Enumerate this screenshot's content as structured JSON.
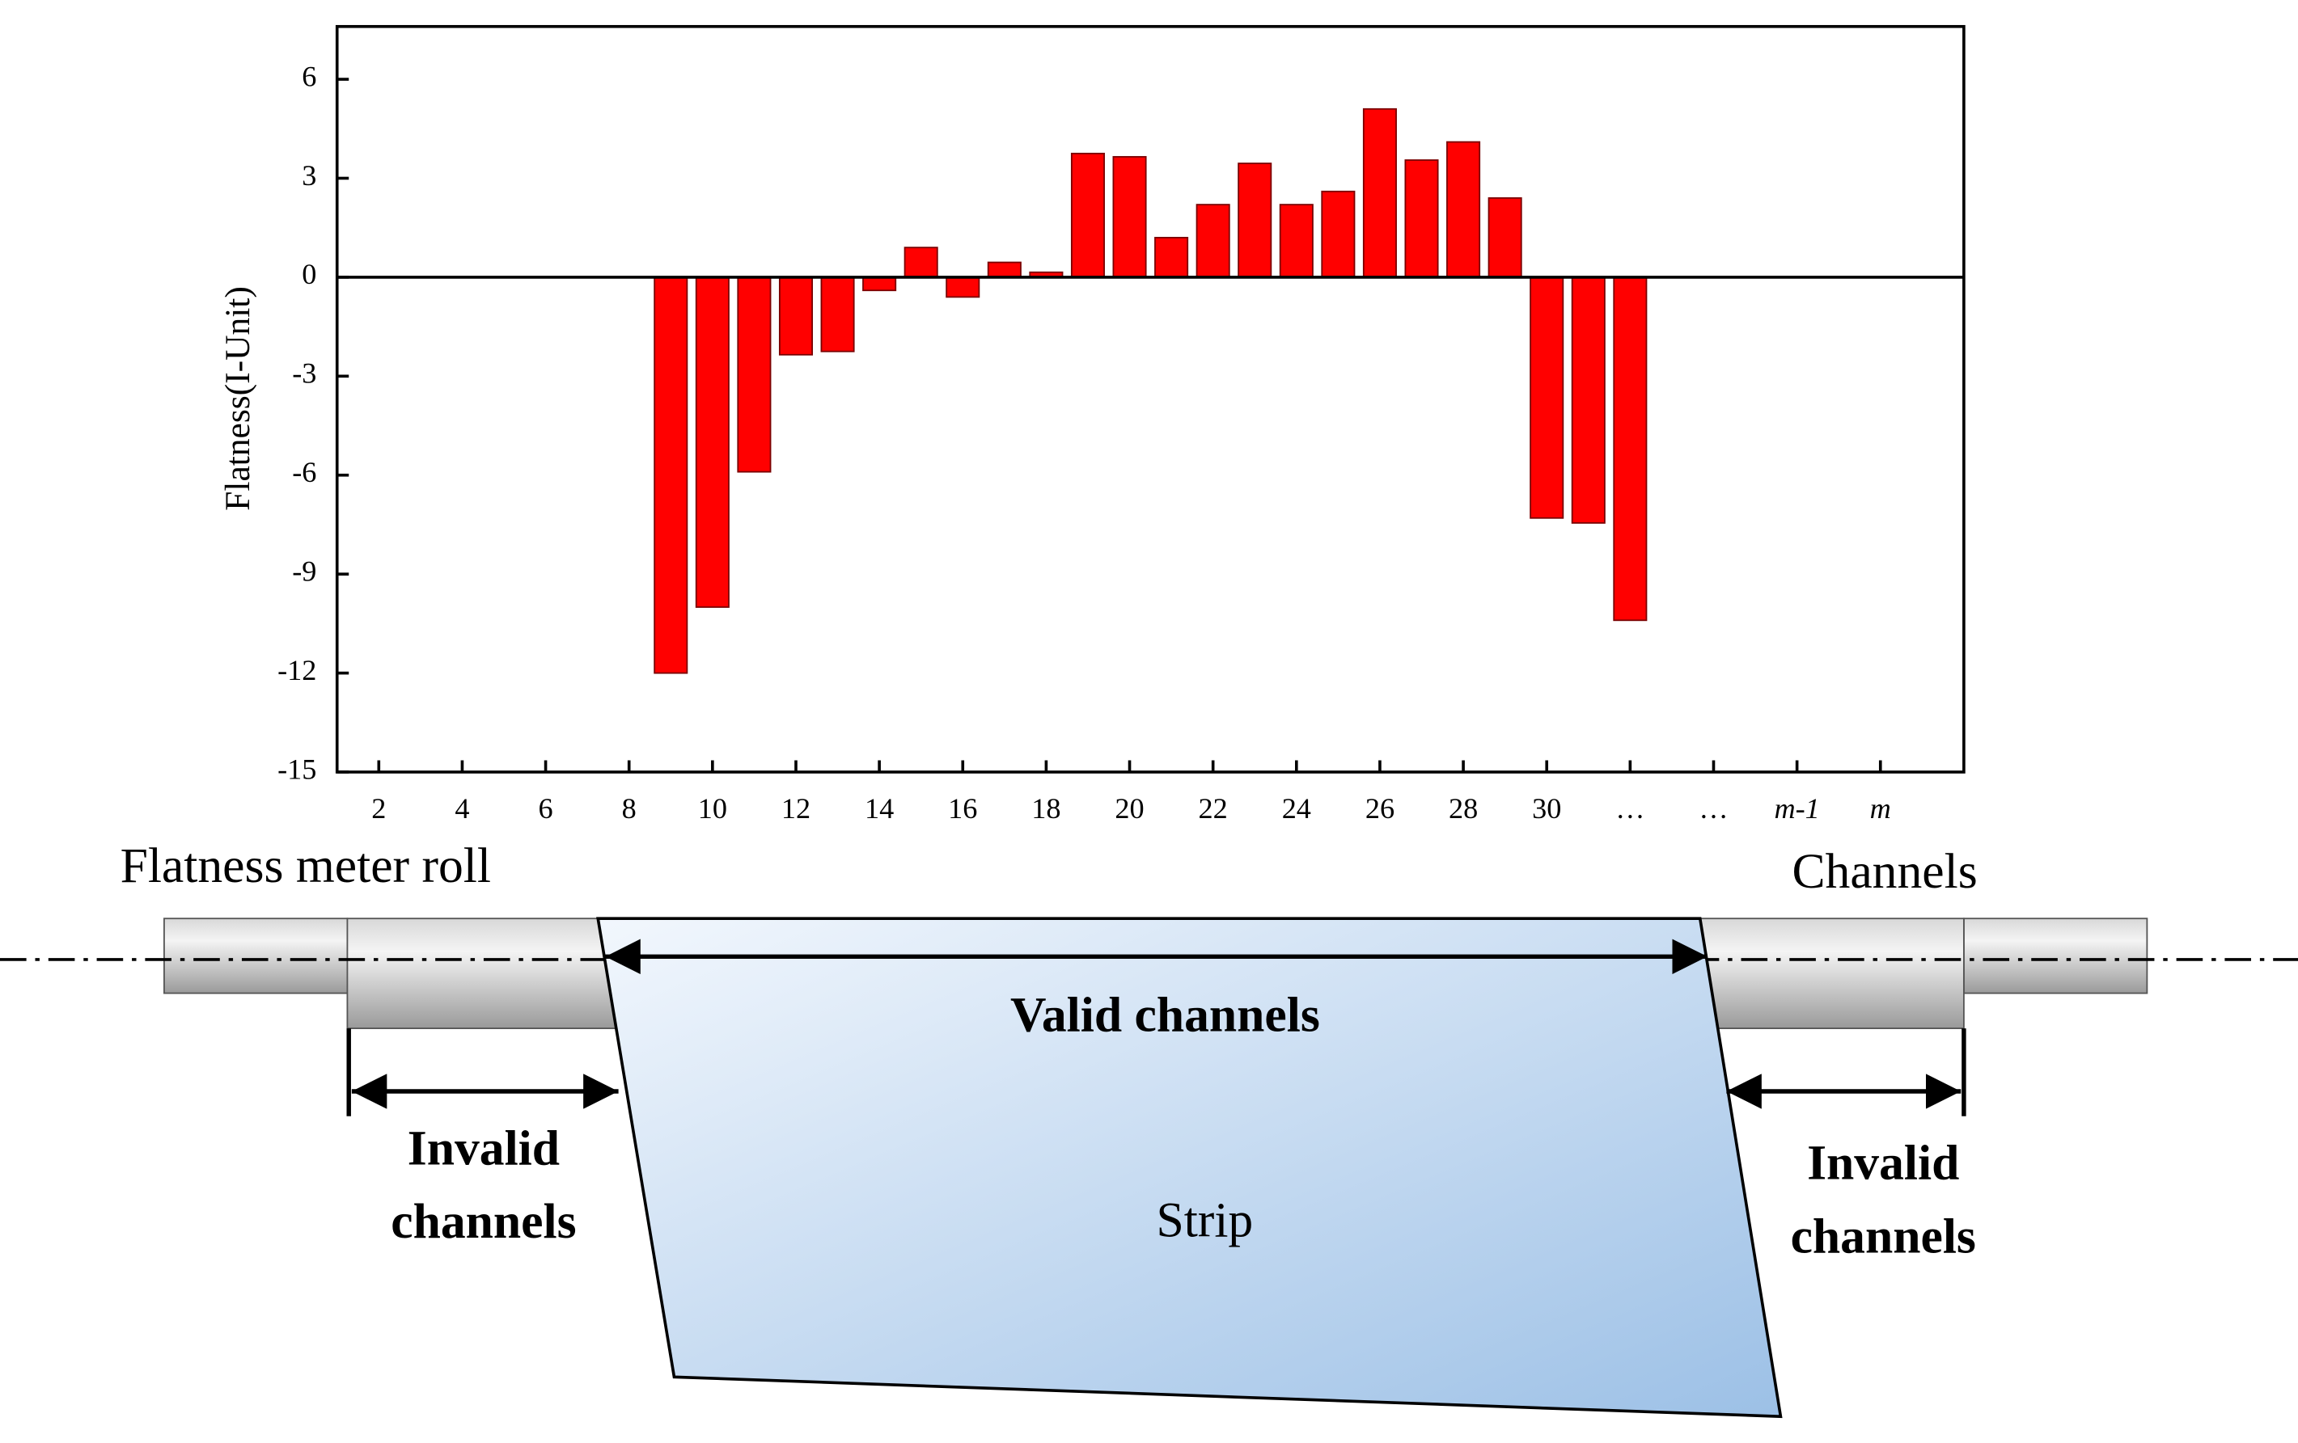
{
  "chart_data": {
    "type": "bar",
    "y_label": "Flatness(I-Unit)",
    "x": [
      9,
      10,
      11,
      12,
      13,
      14,
      15,
      16,
      17,
      18,
      19,
      20,
      21,
      22,
      23,
      24,
      25,
      26,
      27,
      28,
      29,
      30,
      31,
      32
    ],
    "values": [
      -12.0,
      -10.0,
      -5.9,
      -2.35,
      -2.25,
      -0.4,
      0.9,
      -0.6,
      0.45,
      0.15,
      3.75,
      3.65,
      1.2,
      2.2,
      3.45,
      2.2,
      2.6,
      5.1,
      3.55,
      4.1,
      2.4,
      -7.3,
      -7.45,
      -10.4
    ],
    "color": "#ff0000",
    "xlim": [
      1,
      40
    ],
    "xticks": [
      2,
      4,
      6,
      8,
      10,
      12,
      14,
      16,
      18,
      20,
      22,
      24,
      26,
      28,
      30,
      {
        "value": 32,
        "label": "…"
      },
      {
        "value": 34,
        "label": "…"
      },
      {
        "value": 36,
        "label": "m-1"
      },
      {
        "value": 38,
        "label": "m"
      }
    ],
    "ylim": [
      -15,
      7.6
    ],
    "yticks": [
      6,
      3,
      0,
      -3,
      -6,
      -9,
      -12,
      -15
    ],
    "grid": false
  },
  "diagram": {
    "roll_label": "Flatness meter roll",
    "axis_label": "Channels",
    "valid_label": "Valid channels",
    "invalid_left": [
      "Invalid",
      "channels"
    ],
    "invalid_right": [
      "Invalid",
      "channels"
    ],
    "strip_label": "Strip"
  }
}
